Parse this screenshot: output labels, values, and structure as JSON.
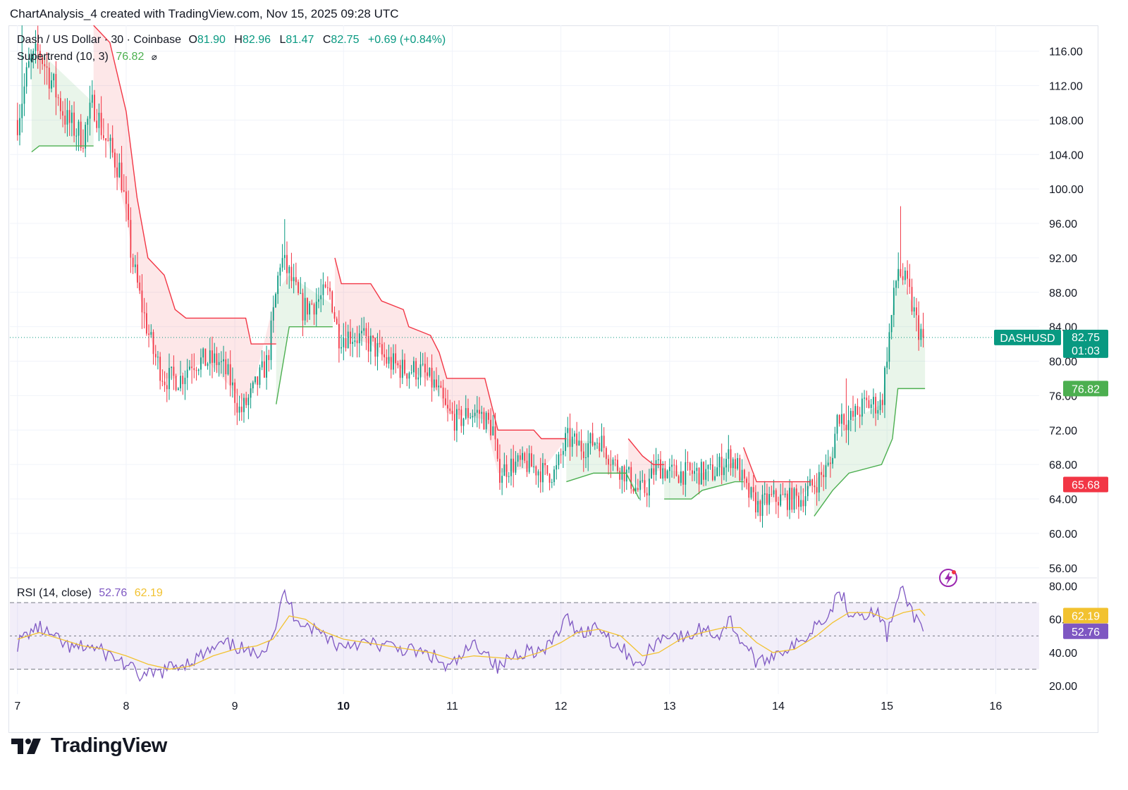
{
  "header": {
    "caption": "ChartAnalysis_4 created with TradingView.com, Nov 15, 2025 09:28 UTC"
  },
  "legend": {
    "symbol": "Dash / US Dollar · 30 · Coinbase",
    "open_label": "O",
    "open": "81.90",
    "high_label": "H",
    "high": "82.96",
    "low_label": "L",
    "low": "81.47",
    "close_label": "C",
    "close": "82.75",
    "change": "+0.69 (+0.84%)",
    "supertrend_label": "Supertrend (10, 3)",
    "supertrend_value": "76.82",
    "visibility_icon": "eye-off-icon",
    "rsi_label": "RSI (14, close)",
    "rsi_value": "52.76",
    "rsi_ma_value": "62.19"
  },
  "price_tags": {
    "symbol_tag": "DASHUSD",
    "last_price": "82.75",
    "countdown": "01:03",
    "supertrend_up": "76.82",
    "supertrend_down": "65.68",
    "rsi_ma": "62.19",
    "rsi": "52.76"
  },
  "colors": {
    "up": "#089981",
    "down": "#f23645",
    "supertrend_up": "#4caf50",
    "supertrend_down": "#f23645",
    "rsi": "#7e57c2",
    "rsi_ma": "#f2c230",
    "rsi_band": "#7e57c2"
  },
  "footer": {
    "brand": "TradingView",
    "logo_icon": "tradingview-logo-icon",
    "flash_icon": "flash-icon"
  },
  "chart_data": [
    {
      "type": "candlestick",
      "title": "Dash / US Dollar · 30 · Coinbase",
      "interval": "30",
      "y_axis_ticks": [
        "56.00",
        "60.00",
        "64.00",
        "68.00",
        "72.00",
        "76.00",
        "80.00",
        "84.00",
        "88.00",
        "92.00",
        "96.00",
        "100.00",
        "104.00",
        "108.00",
        "112.00",
        "116.00"
      ],
      "ylim": [
        55,
        119
      ],
      "x_axis_ticks": [
        "7",
        "8",
        "9",
        "10",
        "11",
        "12",
        "13",
        "14",
        "15",
        "16"
      ],
      "xlim_days": [
        6.93,
        16.4
      ],
      "grid": true,
      "last_price": 82.75,
      "ohlc_last": {
        "open": 81.9,
        "high": 82.96,
        "low": 81.47,
        "close": 82.75
      },
      "price_path": [
        [
          7.0,
          108
        ],
        [
          7.1,
          114
        ],
        [
          7.2,
          116
        ],
        [
          7.3,
          113
        ],
        [
          7.45,
          108
        ],
        [
          7.6,
          106
        ],
        [
          7.7,
          110
        ],
        [
          7.8,
          106
        ],
        [
          7.95,
          102
        ],
        [
          8.05,
          92
        ],
        [
          8.15,
          86
        ],
        [
          8.25,
          81
        ],
        [
          8.35,
          78
        ],
        [
          8.5,
          78
        ],
        [
          8.6,
          80
        ],
        [
          8.7,
          80
        ],
        [
          8.85,
          80
        ],
        [
          8.95,
          78
        ],
        [
          9.05,
          74
        ],
        [
          9.15,
          76
        ],
        [
          9.3,
          80
        ],
        [
          9.42,
          92
        ],
        [
          9.5,
          90
        ],
        [
          9.62,
          86
        ],
        [
          9.75,
          87
        ],
        [
          9.88,
          88
        ],
        [
          9.95,
          83
        ],
        [
          10.1,
          83
        ],
        [
          10.25,
          82
        ],
        [
          10.4,
          80
        ],
        [
          10.55,
          79
        ],
        [
          10.7,
          79
        ],
        [
          10.85,
          77
        ],
        [
          10.95,
          74
        ],
        [
          11.05,
          73
        ],
        [
          11.15,
          74
        ],
        [
          11.25,
          74
        ],
        [
          11.38,
          72
        ],
        [
          11.42,
          67
        ],
        [
          11.55,
          68
        ],
        [
          11.7,
          68
        ],
        [
          11.85,
          67
        ],
        [
          11.95,
          67
        ],
        [
          12.05,
          71
        ],
        [
          12.2,
          70
        ],
        [
          12.35,
          71
        ],
        [
          12.5,
          68
        ],
        [
          12.6,
          67
        ],
        [
          12.7,
          65
        ],
        [
          12.78,
          65
        ],
        [
          12.88,
          68
        ],
        [
          13.0,
          67
        ],
        [
          13.1,
          67
        ],
        [
          13.25,
          67
        ],
        [
          13.4,
          67
        ],
        [
          13.55,
          69
        ],
        [
          13.62,
          68
        ],
        [
          13.7,
          65
        ],
        [
          13.82,
          63
        ],
        [
          13.92,
          64
        ],
        [
          14.05,
          64
        ],
        [
          14.2,
          64
        ],
        [
          14.35,
          66
        ],
        [
          14.48,
          68
        ],
        [
          14.55,
          74
        ],
        [
          14.65,
          73
        ],
        [
          14.8,
          75
        ],
        [
          14.95,
          75
        ],
        [
          15.0,
          81
        ],
        [
          15.05,
          86
        ],
        [
          15.1,
          91
        ],
        [
          15.2,
          88
        ],
        [
          15.28,
          84
        ],
        [
          15.35,
          82.75
        ]
      ],
      "spikes": [
        [
          9.45,
          96.5
        ],
        [
          15.12,
          98
        ],
        [
          14.63,
          78
        ],
        [
          7.05,
          119
        ],
        [
          13.85,
          62
        ]
      ]
    },
    {
      "type": "line",
      "name": "Supertrend (10, 3)",
      "value_up": 76.82,
      "value_down": 65.68,
      "segments": [
        {
          "trend": "up",
          "points": [
            [
              7.13,
              104.3
            ],
            [
              7.2,
              105
            ],
            [
              7.7,
              105
            ]
          ]
        },
        {
          "trend": "down",
          "points": [
            [
              7.7,
              119
            ],
            [
              7.85,
              117
            ],
            [
              8.0,
              109
            ],
            [
              8.1,
              99
            ],
            [
              8.2,
              92
            ],
            [
              8.35,
              90
            ],
            [
              8.45,
              86
            ],
            [
              8.55,
              85
            ],
            [
              8.75,
              85
            ],
            [
              9.1,
              85
            ],
            [
              9.15,
              82
            ],
            [
              9.38,
              82
            ]
          ]
        },
        {
          "trend": "up",
          "points": [
            [
              9.38,
              75
            ],
            [
              9.5,
              84
            ],
            [
              9.9,
              84
            ]
          ]
        },
        {
          "trend": "down",
          "points": [
            [
              9.92,
              92
            ],
            [
              9.98,
              89
            ],
            [
              10.25,
              89
            ],
            [
              10.35,
              87
            ],
            [
              10.55,
              86
            ],
            [
              10.6,
              84
            ],
            [
              10.8,
              83
            ],
            [
              10.88,
              81
            ],
            [
              10.95,
              78
            ],
            [
              11.3,
              78
            ],
            [
              11.42,
              72
            ],
            [
              11.75,
              72
            ],
            [
              11.82,
              71
            ],
            [
              12.05,
              71
            ]
          ]
        },
        {
          "trend": "up",
          "points": [
            [
              12.05,
              66
            ],
            [
              12.3,
              67
            ],
            [
              12.6,
              67
            ],
            [
              12.72,
              64
            ]
          ]
        },
        {
          "trend": "down",
          "points": [
            [
              12.62,
              71
            ],
            [
              12.75,
              69
            ],
            [
              12.85,
              68
            ],
            [
              12.95,
              68
            ]
          ]
        },
        {
          "trend": "up",
          "points": [
            [
              12.95,
              64
            ],
            [
              13.2,
              64
            ],
            [
              13.3,
              65
            ],
            [
              13.6,
              66
            ],
            [
              13.68,
              66
            ]
          ]
        },
        {
          "trend": "down",
          "points": [
            [
              13.68,
              70
            ],
            [
              13.8,
              66
            ],
            [
              14.15,
              66
            ],
            [
              14.3,
              66
            ]
          ]
        },
        {
          "trend": "up",
          "points": [
            [
              14.33,
              62
            ],
            [
              14.5,
              65
            ],
            [
              14.65,
              67
            ],
            [
              14.95,
              68
            ],
            [
              15.05,
              71
            ],
            [
              15.1,
              76.82
            ],
            [
              15.35,
              76.82
            ]
          ]
        }
      ]
    },
    {
      "type": "line",
      "title": "RSI (14, close)",
      "series": [
        {
          "name": "RSI",
          "last": 52.76
        },
        {
          "name": "RSI MA",
          "last": 62.19
        }
      ],
      "y_axis_ticks": [
        "20.00",
        "40.00",
        "60.00",
        "80.00"
      ],
      "ylim": [
        15,
        84
      ],
      "bands": [
        30,
        50,
        70
      ],
      "rsi_path": [
        [
          7.0,
          45
        ],
        [
          7.1,
          52
        ],
        [
          7.2,
          55
        ],
        [
          7.35,
          48
        ],
        [
          7.5,
          42
        ],
        [
          7.65,
          44
        ],
        [
          7.8,
          40
        ],
        [
          7.95,
          35
        ],
        [
          8.05,
          30
        ],
        [
          8.15,
          25
        ],
        [
          8.3,
          28
        ],
        [
          8.45,
          32
        ],
        [
          8.6,
          35
        ],
        [
          8.75,
          40
        ],
        [
          8.9,
          45
        ],
        [
          9.05,
          43
        ],
        [
          9.15,
          38
        ],
        [
          9.3,
          45
        ],
        [
          9.4,
          60
        ],
        [
          9.45,
          77
        ],
        [
          9.55,
          62
        ],
        [
          9.7,
          55
        ],
        [
          9.85,
          50
        ],
        [
          9.95,
          44
        ],
        [
          10.1,
          46
        ],
        [
          10.25,
          45
        ],
        [
          10.4,
          44
        ],
        [
          10.55,
          42
        ],
        [
          10.7,
          40
        ],
        [
          10.85,
          37
        ],
        [
          10.95,
          30
        ],
        [
          11.05,
          35
        ],
        [
          11.2,
          45
        ],
        [
          11.3,
          42
        ],
        [
          11.42,
          30
        ],
        [
          11.55,
          38
        ],
        [
          11.7,
          42
        ],
        [
          11.85,
          40
        ],
        [
          12.05,
          60
        ],
        [
          12.2,
          52
        ],
        [
          12.35,
          56
        ],
        [
          12.5,
          45
        ],
        [
          12.65,
          38
        ],
        [
          12.72,
          30
        ],
        [
          12.85,
          45
        ],
        [
          13.0,
          52
        ],
        [
          13.15,
          48
        ],
        [
          13.3,
          55
        ],
        [
          13.45,
          50
        ],
        [
          13.55,
          60
        ],
        [
          13.65,
          48
        ],
        [
          13.75,
          40
        ],
        [
          13.82,
          32
        ],
        [
          13.92,
          38
        ],
        [
          14.05,
          42
        ],
        [
          14.2,
          45
        ],
        [
          14.35,
          58
        ],
        [
          14.5,
          66
        ],
        [
          14.55,
          80
        ],
        [
          14.65,
          65
        ],
        [
          14.8,
          64
        ],
        [
          14.95,
          62
        ],
        [
          15.0,
          50
        ],
        [
          15.08,
          68
        ],
        [
          15.15,
          78
        ],
        [
          15.22,
          65
        ],
        [
          15.3,
          58
        ],
        [
          15.35,
          52.76
        ]
      ],
      "ma_path": [
        [
          7.0,
          48
        ],
        [
          7.2,
          52
        ],
        [
          7.4,
          48
        ],
        [
          7.6,
          44
        ],
        [
          7.8,
          42
        ],
        [
          8.0,
          38
        ],
        [
          8.2,
          33
        ],
        [
          8.4,
          30
        ],
        [
          8.6,
          32
        ],
        [
          8.8,
          38
        ],
        [
          9.0,
          42
        ],
        [
          9.2,
          44
        ],
        [
          9.35,
          48
        ],
        [
          9.5,
          62
        ],
        [
          9.65,
          60
        ],
        [
          9.8,
          53
        ],
        [
          10.0,
          48
        ],
        [
          10.2,
          46
        ],
        [
          10.4,
          44
        ],
        [
          10.6,
          42
        ],
        [
          10.8,
          40
        ],
        [
          11.0,
          36
        ],
        [
          11.2,
          38
        ],
        [
          11.4,
          37
        ],
        [
          11.6,
          36
        ],
        [
          11.8,
          40
        ],
        [
          12.0,
          46
        ],
        [
          12.15,
          52
        ],
        [
          12.35,
          54
        ],
        [
          12.55,
          50
        ],
        [
          12.75,
          38
        ],
        [
          12.9,
          40
        ],
        [
          13.1,
          48
        ],
        [
          13.3,
          52
        ],
        [
          13.5,
          55
        ],
        [
          13.65,
          55
        ],
        [
          13.8,
          46
        ],
        [
          13.95,
          40
        ],
        [
          14.15,
          42
        ],
        [
          14.35,
          50
        ],
        [
          14.5,
          58
        ],
        [
          14.65,
          64
        ],
        [
          14.85,
          64
        ],
        [
          15.0,
          60
        ],
        [
          15.15,
          64
        ],
        [
          15.3,
          66
        ],
        [
          15.35,
          62.19
        ]
      ]
    }
  ]
}
